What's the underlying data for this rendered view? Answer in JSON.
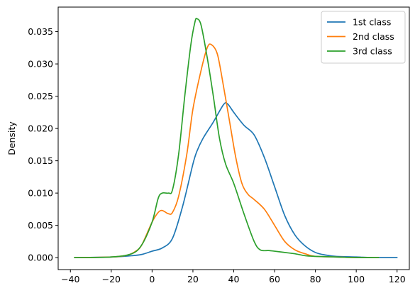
{
  "chart_data": {
    "type": "line",
    "title": "",
    "xlabel": "",
    "ylabel": "Density",
    "xlim": [
      -46,
      126
    ],
    "ylim": [
      -0.00185,
      0.0388
    ],
    "x_ticks": [
      -40,
      -20,
      0,
      20,
      40,
      60,
      80,
      100,
      120
    ],
    "x_tick_labels": [
      "−40",
      "−20",
      "0",
      "20",
      "40",
      "60",
      "80",
      "100",
      "120"
    ],
    "y_ticks": [
      0.0,
      0.005,
      0.01,
      0.015,
      0.02,
      0.025,
      0.03,
      0.035
    ],
    "y_tick_labels": [
      "0.000",
      "0.005",
      "0.010",
      "0.015",
      "0.020",
      "0.025",
      "0.030",
      "0.035"
    ],
    "grid": false,
    "legend_position": "top-right",
    "series": [
      {
        "name": "1st class",
        "color": "#1f77b4",
        "points": [
          [
            -38,
            0
          ],
          [
            -20,
            0.0001
          ],
          [
            -10,
            0.0003
          ],
          [
            -5,
            0.0005
          ],
          [
            0,
            0.001
          ],
          [
            5,
            0.0015
          ],
          [
            10,
            0.003
          ],
          [
            15,
            0.008
          ],
          [
            20,
            0.0145
          ],
          [
            22,
            0.0165
          ],
          [
            25,
            0.0185
          ],
          [
            30,
            0.021
          ],
          [
            35,
            0.0237
          ],
          [
            37,
            0.0238
          ],
          [
            40,
            0.0225
          ],
          [
            45,
            0.0205
          ],
          [
            50,
            0.019
          ],
          [
            55,
            0.0155
          ],
          [
            60,
            0.011
          ],
          [
            65,
            0.0065
          ],
          [
            70,
            0.0035
          ],
          [
            75,
            0.0018
          ],
          [
            80,
            0.0008
          ],
          [
            85,
            0.0004
          ],
          [
            90,
            0.0002
          ],
          [
            100,
            0.0001
          ],
          [
            110,
            0
          ],
          [
            120,
            0
          ]
        ]
      },
      {
        "name": "2nd class",
        "color": "#ff7f0e",
        "points": [
          [
            -38,
            0
          ],
          [
            -20,
            0.0001
          ],
          [
            -12,
            0.0004
          ],
          [
            -8,
            0.001
          ],
          [
            -5,
            0.002
          ],
          [
            0,
            0.0055
          ],
          [
            3,
            0.007
          ],
          [
            5,
            0.0073
          ],
          [
            8,
            0.0068
          ],
          [
            10,
            0.007
          ],
          [
            13,
            0.0095
          ],
          [
            17,
            0.016
          ],
          [
            20,
            0.023
          ],
          [
            24,
            0.029
          ],
          [
            27,
            0.0325
          ],
          [
            29,
            0.033
          ],
          [
            32,
            0.0315
          ],
          [
            35,
            0.0265
          ],
          [
            38,
            0.021
          ],
          [
            41,
            0.0155
          ],
          [
            44,
            0.0115
          ],
          [
            47,
            0.0098
          ],
          [
            50,
            0.009
          ],
          [
            55,
            0.0075
          ],
          [
            60,
            0.005
          ],
          [
            65,
            0.0025
          ],
          [
            70,
            0.0012
          ],
          [
            75,
            0.0006
          ],
          [
            80,
            0.0002
          ],
          [
            90,
            0.0001
          ],
          [
            100,
            0
          ],
          [
            111,
            0
          ]
        ]
      },
      {
        "name": "3rd class",
        "color": "#2ca02c",
        "points": [
          [
            -38,
            0
          ],
          [
            -20,
            0.0001
          ],
          [
            -10,
            0.0006
          ],
          [
            -5,
            0.002
          ],
          [
            0,
            0.0055
          ],
          [
            3,
            0.0092
          ],
          [
            5,
            0.01
          ],
          [
            8,
            0.01
          ],
          [
            10,
            0.0105
          ],
          [
            13,
            0.016
          ],
          [
            16,
            0.025
          ],
          [
            19,
            0.033
          ],
          [
            21,
            0.0365
          ],
          [
            22,
            0.037
          ],
          [
            24,
            0.036
          ],
          [
            27,
            0.031
          ],
          [
            30,
            0.025
          ],
          [
            33,
            0.0185
          ],
          [
            36,
            0.0145
          ],
          [
            40,
            0.0115
          ],
          [
            45,
            0.0068
          ],
          [
            50,
            0.0025
          ],
          [
            53,
            0.0012
          ],
          [
            57,
            0.0011
          ],
          [
            60,
            0.001
          ],
          [
            65,
            0.0008
          ],
          [
            70,
            0.0006
          ],
          [
            75,
            0.0003
          ],
          [
            80,
            0.0002
          ],
          [
            90,
            0.0001
          ],
          [
            100,
            0
          ],
          [
            111,
            0
          ]
        ]
      }
    ]
  }
}
